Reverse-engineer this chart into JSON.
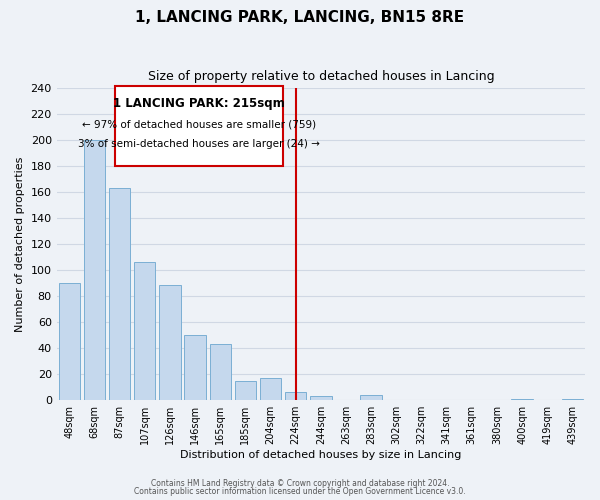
{
  "title": "1, LANCING PARK, LANCING, BN15 8RE",
  "subtitle": "Size of property relative to detached houses in Lancing",
  "xlabel": "Distribution of detached houses by size in Lancing",
  "ylabel": "Number of detached properties",
  "bar_labels": [
    "48sqm",
    "68sqm",
    "87sqm",
    "107sqm",
    "126sqm",
    "146sqm",
    "165sqm",
    "185sqm",
    "204sqm",
    "224sqm",
    "244sqm",
    "263sqm",
    "283sqm",
    "302sqm",
    "322sqm",
    "341sqm",
    "361sqm",
    "380sqm",
    "400sqm",
    "419sqm",
    "439sqm"
  ],
  "bar_values": [
    90,
    200,
    163,
    106,
    89,
    50,
    43,
    15,
    17,
    6,
    3,
    0,
    4,
    0,
    0,
    0,
    0,
    0,
    1,
    0,
    1
  ],
  "bar_color": "#c5d8ed",
  "bar_edge_color": "#7bafd4",
  "vline_x": 9.0,
  "vline_color": "#cc0000",
  "ylim": [
    0,
    240
  ],
  "yticks": [
    0,
    20,
    40,
    60,
    80,
    100,
    120,
    140,
    160,
    180,
    200,
    220,
    240
  ],
  "annotation_title": "1 LANCING PARK: 215sqm",
  "annotation_line1": "← 97% of detached houses are smaller (759)",
  "annotation_line2": "3% of semi-detached houses are larger (24) →",
  "annotation_box_color": "#ffffff",
  "annotation_box_edge": "#cc0000",
  "footer_line1": "Contains HM Land Registry data © Crown copyright and database right 2024.",
  "footer_line2": "Contains public sector information licensed under the Open Government Licence v3.0.",
  "bg_color": "#eef2f7",
  "title_fontsize": 11,
  "subtitle_fontsize": 9,
  "grid_color": "#d0d8e4"
}
